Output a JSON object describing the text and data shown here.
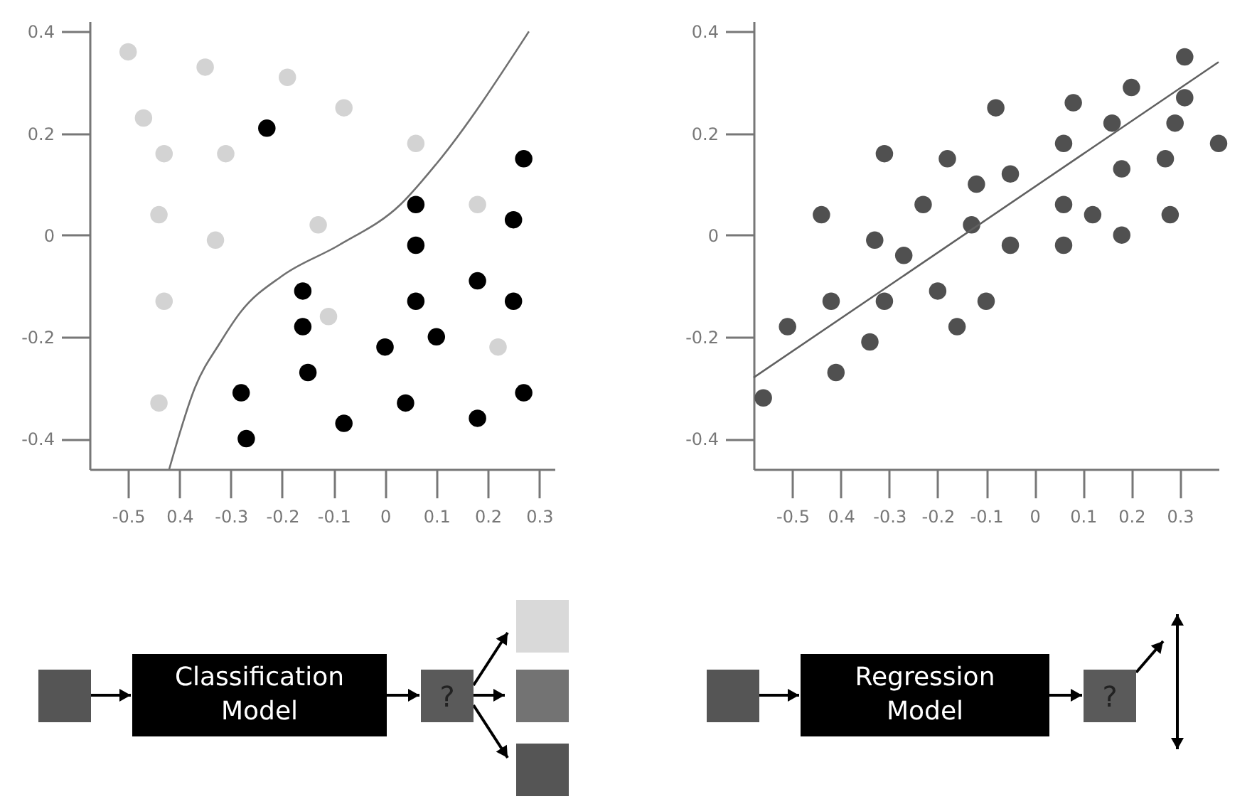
{
  "chart_data": [
    {
      "type": "scatter",
      "xlim": [
        -0.575,
        0.33
      ],
      "ylim": [
        -0.46,
        0.42
      ],
      "xticks": [
        -0.5,
        {
          "value": -0.4,
          "label": "0.4"
        },
        -0.3,
        -0.2,
        -0.1,
        0,
        0.1,
        0.2,
        0.3
      ],
      "yticks": [
        -0.4,
        -0.2,
        0,
        0.2,
        0.4
      ],
      "series": [
        {
          "type": "scatter",
          "marker": "circle",
          "color": "#d3d3d3",
          "x": [
            -0.5,
            -0.35,
            -0.19,
            -0.47,
            -0.08,
            -0.43,
            -0.31,
            0.06,
            -0.44,
            -0.33,
            -0.13,
            0.18,
            -0.43,
            -0.11,
            0.22,
            -0.44
          ],
          "values": [
            0.36,
            0.33,
            0.31,
            0.23,
            0.25,
            0.16,
            0.16,
            0.18,
            0.04,
            -0.01,
            0.02,
            0.06,
            -0.13,
            -0.16,
            -0.22,
            -0.33
          ]
        },
        {
          "type": "scatter",
          "marker": "circle",
          "color": "#000000",
          "x": [
            -0.23,
            0.27,
            0.06,
            0.25,
            0.06,
            -0.16,
            0.06,
            0.18,
            0.25,
            -0.16,
            0.1,
            0,
            -0.15,
            -0.28,
            0.04,
            0.27,
            -0.08,
            0.18,
            -0.27
          ],
          "values": [
            0.21,
            0.15,
            0.06,
            0.03,
            -0.02,
            -0.11,
            -0.13,
            -0.09,
            -0.13,
            -0.18,
            -0.2,
            -0.22,
            -0.27,
            -0.31,
            -0.33,
            -0.31,
            -0.37,
            -0.36,
            -0.4
          ]
        },
        {
          "type": "line",
          "color": "#707070",
          "x": [
            -0.42,
            -0.37,
            -0.32,
            -0.28,
            -0.2,
            -0.09,
            0.03,
            0.1,
            0.28
          ],
          "values": [
            -0.46,
            -0.3,
            -0.21,
            -0.15,
            -0.08,
            -0.02,
            0.06,
            0.14,
            0.4
          ]
        }
      ],
      "annotations": [
        "Classification Model",
        "?"
      ]
    },
    {
      "type": "scatter",
      "xlim": [
        -0.58,
        0.38
      ],
      "ylim": [
        -0.46,
        0.42
      ],
      "xticks": [
        -0.5,
        {
          "value": -0.4,
          "label": "0.4"
        },
        -0.3,
        -0.2,
        -0.1,
        0,
        0.1,
        0.2,
        0.3
      ],
      "yticks": [
        -0.4,
        -0.2,
        0,
        0.2,
        0.4
      ],
      "series": [
        {
          "type": "scatter",
          "marker": "circle",
          "color": "#505050",
          "x": [
            -0.56,
            -0.51,
            -0.44,
            -0.42,
            -0.41,
            -0.34,
            -0.33,
            -0.31,
            -0.31,
            -0.27,
            -0.23,
            -0.2,
            -0.18,
            -0.16,
            -0.13,
            -0.12,
            -0.1,
            -0.08,
            -0.05,
            -0.05,
            0.06,
            0.06,
            0.06,
            0.08,
            0.12,
            0.16,
            0.18,
            0.18,
            0.2,
            0.27,
            0.28,
            0.29,
            0.31,
            0.31,
            0.38
          ],
          "values": [
            -0.32,
            -0.18,
            0.04,
            -0.13,
            -0.27,
            -0.21,
            -0.01,
            0.16,
            -0.13,
            -0.04,
            0.06,
            -0.11,
            0.15,
            -0.18,
            0.02,
            0.1,
            -0.13,
            0.25,
            0.12,
            -0.02,
            0.18,
            0.06,
            -0.02,
            0.26,
            0.04,
            0.22,
            0.13,
            0,
            0.29,
            0.15,
            0.04,
            0.22,
            0.27,
            0.35,
            0.18
          ]
        },
        {
          "type": "line",
          "color": "#606060",
          "x": [
            -0.58,
            0.38
          ],
          "values": [
            -0.28,
            0.34
          ]
        }
      ],
      "annotations": [
        "Regression Model",
        "?"
      ]
    }
  ]
}
